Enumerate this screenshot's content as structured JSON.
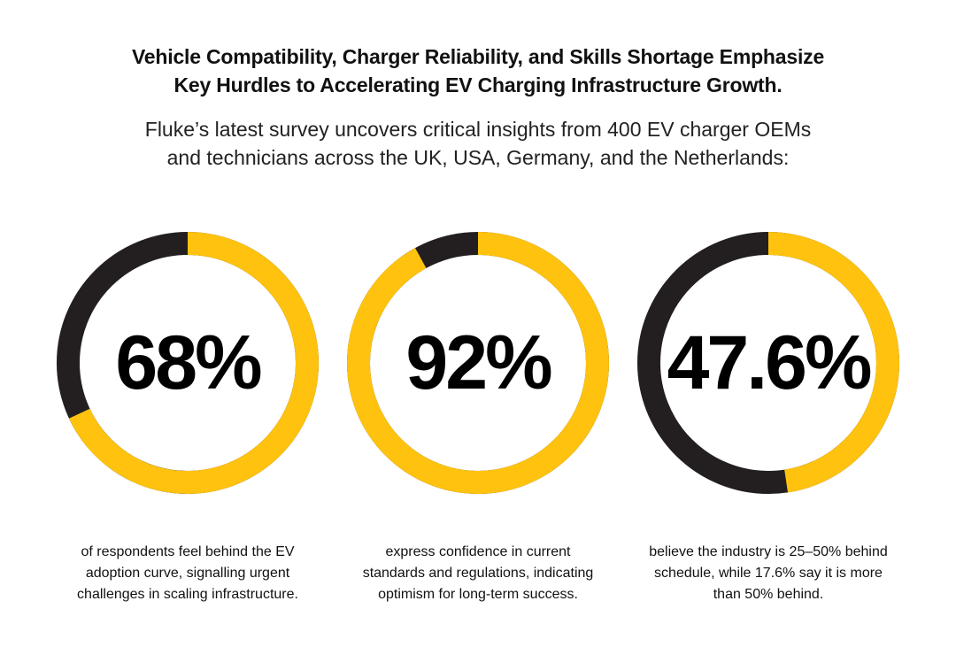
{
  "headline": {
    "line1": "Vehicle Compatibility, Charger Reliability, and Skills Shortage Emphasize",
    "line2": "Key Hurdles to Accelerating EV Charging Infrastructure Growth."
  },
  "subhead": {
    "line1": "Fluke’s latest survey uncovers critical insights from 400 EV charger OEMs",
    "line2": "and technicians across the UK, USA, Germany, and the Netherlands:"
  },
  "colors": {
    "accent": "#FFC20E",
    "dark": "#231F20"
  },
  "stats": [
    {
      "value_text": "68%",
      "fraction": 0.68,
      "caption": [
        "of respondents feel behind the EV",
        "adoption curve, signalling urgent",
        "challenges in scaling infrastructure."
      ]
    },
    {
      "value_text": "92%",
      "fraction": 0.92,
      "caption": [
        "express confidence in current",
        "standards and regulations, indicating",
        "optimism for long-term success."
      ]
    },
    {
      "value_text": "47.6%",
      "fraction": 0.476,
      "caption": [
        "believe the industry is 25–50% behind",
        "schedule, while 17.6% say it is more",
        "than 50% behind."
      ]
    }
  ]
}
